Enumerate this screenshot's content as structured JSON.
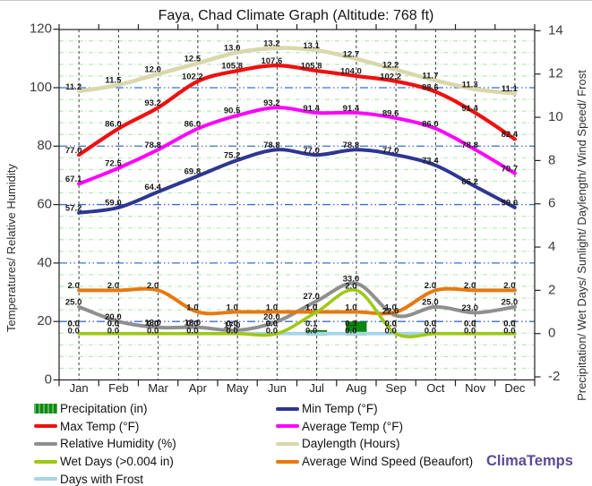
{
  "title": "Faya, Chad Climate Graph (Altitude: 768 ft)",
  "watermark": "ClimaTemps",
  "axes": {
    "left_title": "Temperatures/ Relative Humidity",
    "right_title": "Precipitation/ Wet Days/ Sunlight/ Daylength/ Wind Speed/ Frost",
    "left_ticks": [
      0,
      20,
      40,
      60,
      80,
      100,
      120
    ],
    "right_ticks": [
      -2,
      0,
      2,
      4,
      6,
      8,
      10,
      12,
      14
    ]
  },
  "colors": {
    "grid_green": "#bde7bd",
    "grid_blue": "#3b6fc9",
    "grid_vertical": "#3a3a3a",
    "border": "#222222",
    "tick_label": "#3d3d3d",
    "month_label": "#222222",
    "data_label": "#1b1b1b",
    "watermark_purple": "#5c4a96"
  },
  "chart_data": {
    "type": "line",
    "title": "Faya, Chad Climate Graph (Altitude: 768 ft)",
    "xlabel": "",
    "ylabel_left": "Temperatures/ Relative Humidity",
    "ylabel_right": "Precipitation/ Wet Days/ Sunlight/ Daylength/ Wind Speed/ Frost",
    "ylim_left": [
      0,
      120
    ],
    "ylim_right": [
      -2,
      14
    ],
    "grid": true,
    "legend_position": "bottom",
    "categories": [
      "Jan",
      "Feb",
      "Mar",
      "Apr",
      "May",
      "Jun",
      "Jul",
      "Aug",
      "Sep",
      "Oct",
      "Nov",
      "Dec"
    ],
    "series": [
      {
        "id": "precipitation",
        "name": "Precipitation (in)",
        "type": "bar",
        "axis": "right",
        "color": "#0d8a0d",
        "values": [
          0.0,
          0.0,
          0.0,
          0.0,
          0.0,
          0.0,
          0.1,
          0.3,
          0.0,
          0.0,
          0.0,
          0.0
        ]
      },
      {
        "id": "max-temp",
        "name": "Max Temp (°F)",
        "type": "line",
        "axis": "left",
        "color": "#ee1111",
        "values": [
          77.0,
          86.0,
          93.2,
          102.2,
          105.8,
          107.6,
          105.8,
          104.0,
          102.2,
          98.6,
          91.4,
          82.4
        ]
      },
      {
        "id": "average-temp",
        "name": "Average Temp (°F)",
        "type": "line",
        "axis": "left",
        "color": "#ff00ff",
        "values": [
          67.1,
          72.5,
          78.8,
          86.0,
          90.5,
          93.2,
          91.4,
          91.4,
          89.6,
          86.0,
          78.8,
          70.7
        ]
      },
      {
        "id": "min-temp",
        "name": "Min Temp (°F)",
        "type": "line",
        "axis": "left",
        "color": "#2e3692",
        "values": [
          57.2,
          59.0,
          64.4,
          69.8,
          75.2,
          78.8,
          77.0,
          78.8,
          77.0,
          73.4,
          66.2,
          59.0
        ]
      },
      {
        "id": "relative-humidity",
        "name": "Relative Humidity (%)",
        "type": "line",
        "axis": "left",
        "color": "#8f8f8f",
        "values": [
          25.0,
          20.0,
          18.0,
          18.0,
          17.0,
          20.0,
          27.0,
          33.0,
          22.0,
          25.0,
          23.0,
          25.0
        ]
      },
      {
        "id": "daylength",
        "name": "Daylength (Hours)",
        "type": "line",
        "axis": "right",
        "color": "#d8d8ac",
        "values": [
          11.2,
          11.5,
          12.0,
          12.5,
          13.0,
          13.2,
          13.1,
          12.7,
          12.2,
          11.7,
          11.3,
          11.1
        ]
      },
      {
        "id": "wet-days",
        "name": "Wet Days (>0.004 in)",
        "type": "line",
        "axis": "right",
        "color": "#9fc811",
        "values": [
          0.0,
          0.0,
          0.0,
          0.0,
          0.0,
          0.0,
          1.0,
          2.0,
          0.0,
          0.0,
          0.0,
          0.0
        ]
      },
      {
        "id": "average-wind-speed",
        "name": "Average Wind Speed (Beaufort)",
        "type": "line",
        "axis": "right",
        "color": "#e8790f",
        "values": [
          2.0,
          2.0,
          2.0,
          1.0,
          1.0,
          1.0,
          1.0,
          1.0,
          1.0,
          2.0,
          2.0,
          2.0
        ]
      },
      {
        "id": "days-with-frost",
        "name": "Days with Frost",
        "type": "line",
        "axis": "right",
        "color": "#a6d5e6",
        "values": [
          0.0,
          0.0,
          0.0,
          0.0,
          0.0,
          0.0,
          0.0,
          0.0,
          0.0,
          0.0,
          0.0,
          0.0
        ]
      }
    ]
  },
  "legend": {
    "columns": [
      [
        "precipitation",
        "max-temp",
        "relative-humidity",
        "wet-days",
        "days-with-frost"
      ],
      [
        "min-temp",
        "average-temp",
        "daylength",
        "average-wind-speed"
      ]
    ]
  }
}
